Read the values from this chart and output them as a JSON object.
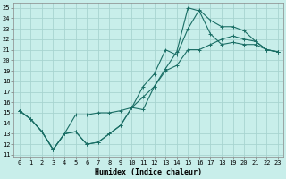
{
  "xlabel": "Humidex (Indice chaleur)",
  "bg_color": "#c8eeea",
  "grid_color": "#a8d4d0",
  "line_color": "#1a6e65",
  "xlim": [
    -0.5,
    23.5
  ],
  "ylim": [
    10.8,
    25.5
  ],
  "xticks": [
    0,
    1,
    2,
    3,
    4,
    5,
    6,
    7,
    8,
    9,
    10,
    11,
    12,
    13,
    14,
    15,
    16,
    17,
    18,
    19,
    20,
    21,
    22,
    23
  ],
  "yticks": [
    11,
    12,
    13,
    14,
    15,
    16,
    17,
    18,
    19,
    20,
    21,
    22,
    23,
    24,
    25
  ],
  "line1_x": [
    0,
    1,
    2,
    3,
    4,
    5,
    6,
    7,
    8,
    9,
    10,
    11,
    12,
    13,
    14,
    15,
    16,
    17,
    18,
    19,
    20,
    21,
    22,
    23
  ],
  "line1_y": [
    15.2,
    14.4,
    13.2,
    11.5,
    13.0,
    14.8,
    14.8,
    15.0,
    15.0,
    15.2,
    15.5,
    16.5,
    17.5,
    19.0,
    19.5,
    21.0,
    21.0,
    21.5,
    22.0,
    22.3,
    22.0,
    21.8,
    21.0,
    20.8
  ],
  "line2_x": [
    0,
    1,
    2,
    3,
    4,
    5,
    6,
    7,
    8,
    9,
    10,
    11,
    12,
    13,
    14,
    15,
    16,
    17,
    18,
    19,
    20,
    21,
    22,
    23
  ],
  "line2_y": [
    15.2,
    14.4,
    13.2,
    11.5,
    13.0,
    13.2,
    12.0,
    12.2,
    13.0,
    13.8,
    15.5,
    17.5,
    18.7,
    21.0,
    20.5,
    23.0,
    24.8,
    23.8,
    23.2,
    23.2,
    22.8,
    21.8,
    21.0,
    20.8
  ],
  "line3_x": [
    0,
    1,
    2,
    3,
    4,
    5,
    6,
    7,
    8,
    9,
    10,
    11,
    12,
    13,
    14,
    15,
    16,
    17,
    18,
    19,
    20,
    21,
    22,
    23
  ],
  "line3_y": [
    15.2,
    14.4,
    13.2,
    11.5,
    13.0,
    13.2,
    12.0,
    12.2,
    13.0,
    13.8,
    15.5,
    15.3,
    17.5,
    19.2,
    20.8,
    25.0,
    24.7,
    22.5,
    21.5,
    21.7,
    21.5,
    21.5,
    21.0,
    20.8
  ],
  "tick_fontsize": 5,
  "xlabel_fontsize": 6
}
